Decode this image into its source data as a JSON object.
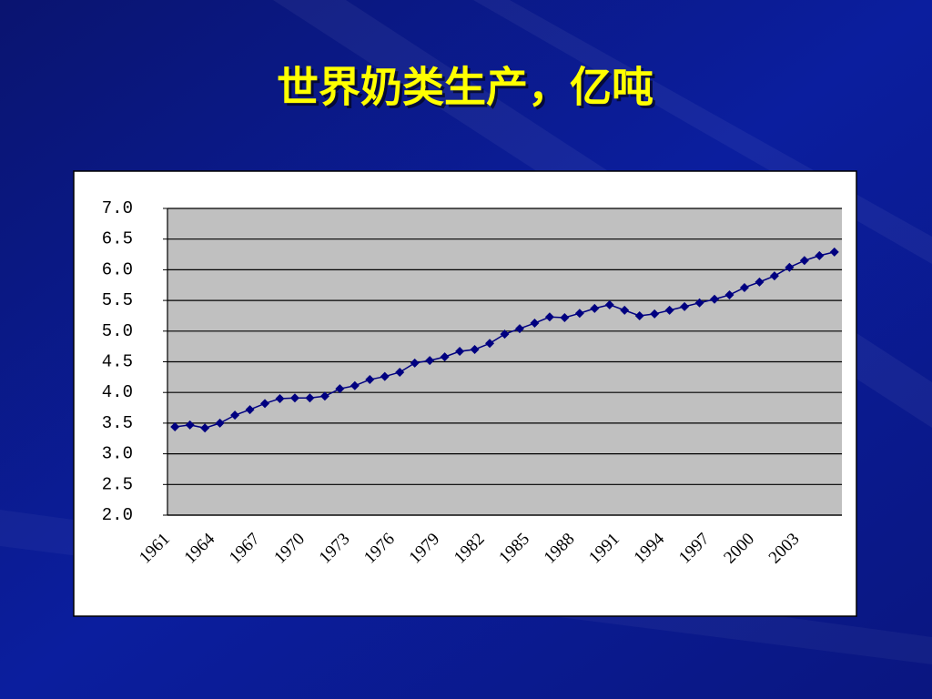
{
  "chart_data": {
    "type": "line",
    "title": "世界奶类生产，亿吨",
    "categories": [
      1961,
      null,
      null,
      1964,
      null,
      null,
      1967,
      null,
      null,
      1970,
      null,
      null,
      1973,
      null,
      null,
      1976,
      null,
      null,
      1979,
      null,
      null,
      1982,
      null,
      null,
      1985,
      null,
      null,
      1988,
      null,
      null,
      1991,
      null,
      null,
      1994,
      null,
      null,
      1997,
      null,
      null,
      2000,
      null,
      null,
      2003,
      null,
      null
    ],
    "values": [
      3.44,
      3.47,
      3.42,
      3.5,
      3.63,
      3.72,
      3.82,
      3.9,
      3.91,
      3.91,
      3.94,
      4.06,
      4.11,
      4.21,
      4.26,
      4.33,
      4.48,
      4.52,
      4.58,
      4.67,
      4.7,
      4.8,
      4.95,
      5.04,
      5.13,
      5.23,
      5.22,
      5.29,
      5.37,
      5.43,
      5.34,
      5.25,
      5.28,
      5.34,
      5.4,
      5.46,
      5.52,
      5.59,
      5.71,
      5.8,
      5.9,
      6.04,
      6.15,
      6.23,
      6.29
    ],
    "color": "#000080",
    "ylim": [
      2,
      7
    ],
    "yticks": [
      {
        "value": 2,
        "label": "2.0"
      },
      {
        "value": 2.5,
        "label": "2.5"
      },
      {
        "value": 3,
        "label": "3.0"
      },
      {
        "value": 3.5,
        "label": "3.5"
      },
      {
        "value": 4,
        "label": "4.0"
      },
      {
        "value": 4.5,
        "label": "4.5"
      },
      {
        "value": 5,
        "label": "5.0"
      },
      {
        "value": 5.5,
        "label": "5.5"
      },
      {
        "value": 6,
        "label": "6.0"
      },
      {
        "value": 6.5,
        "label": "6.5"
      },
      {
        "value": 7,
        "label": "7.0"
      }
    ],
    "grid": true
  }
}
